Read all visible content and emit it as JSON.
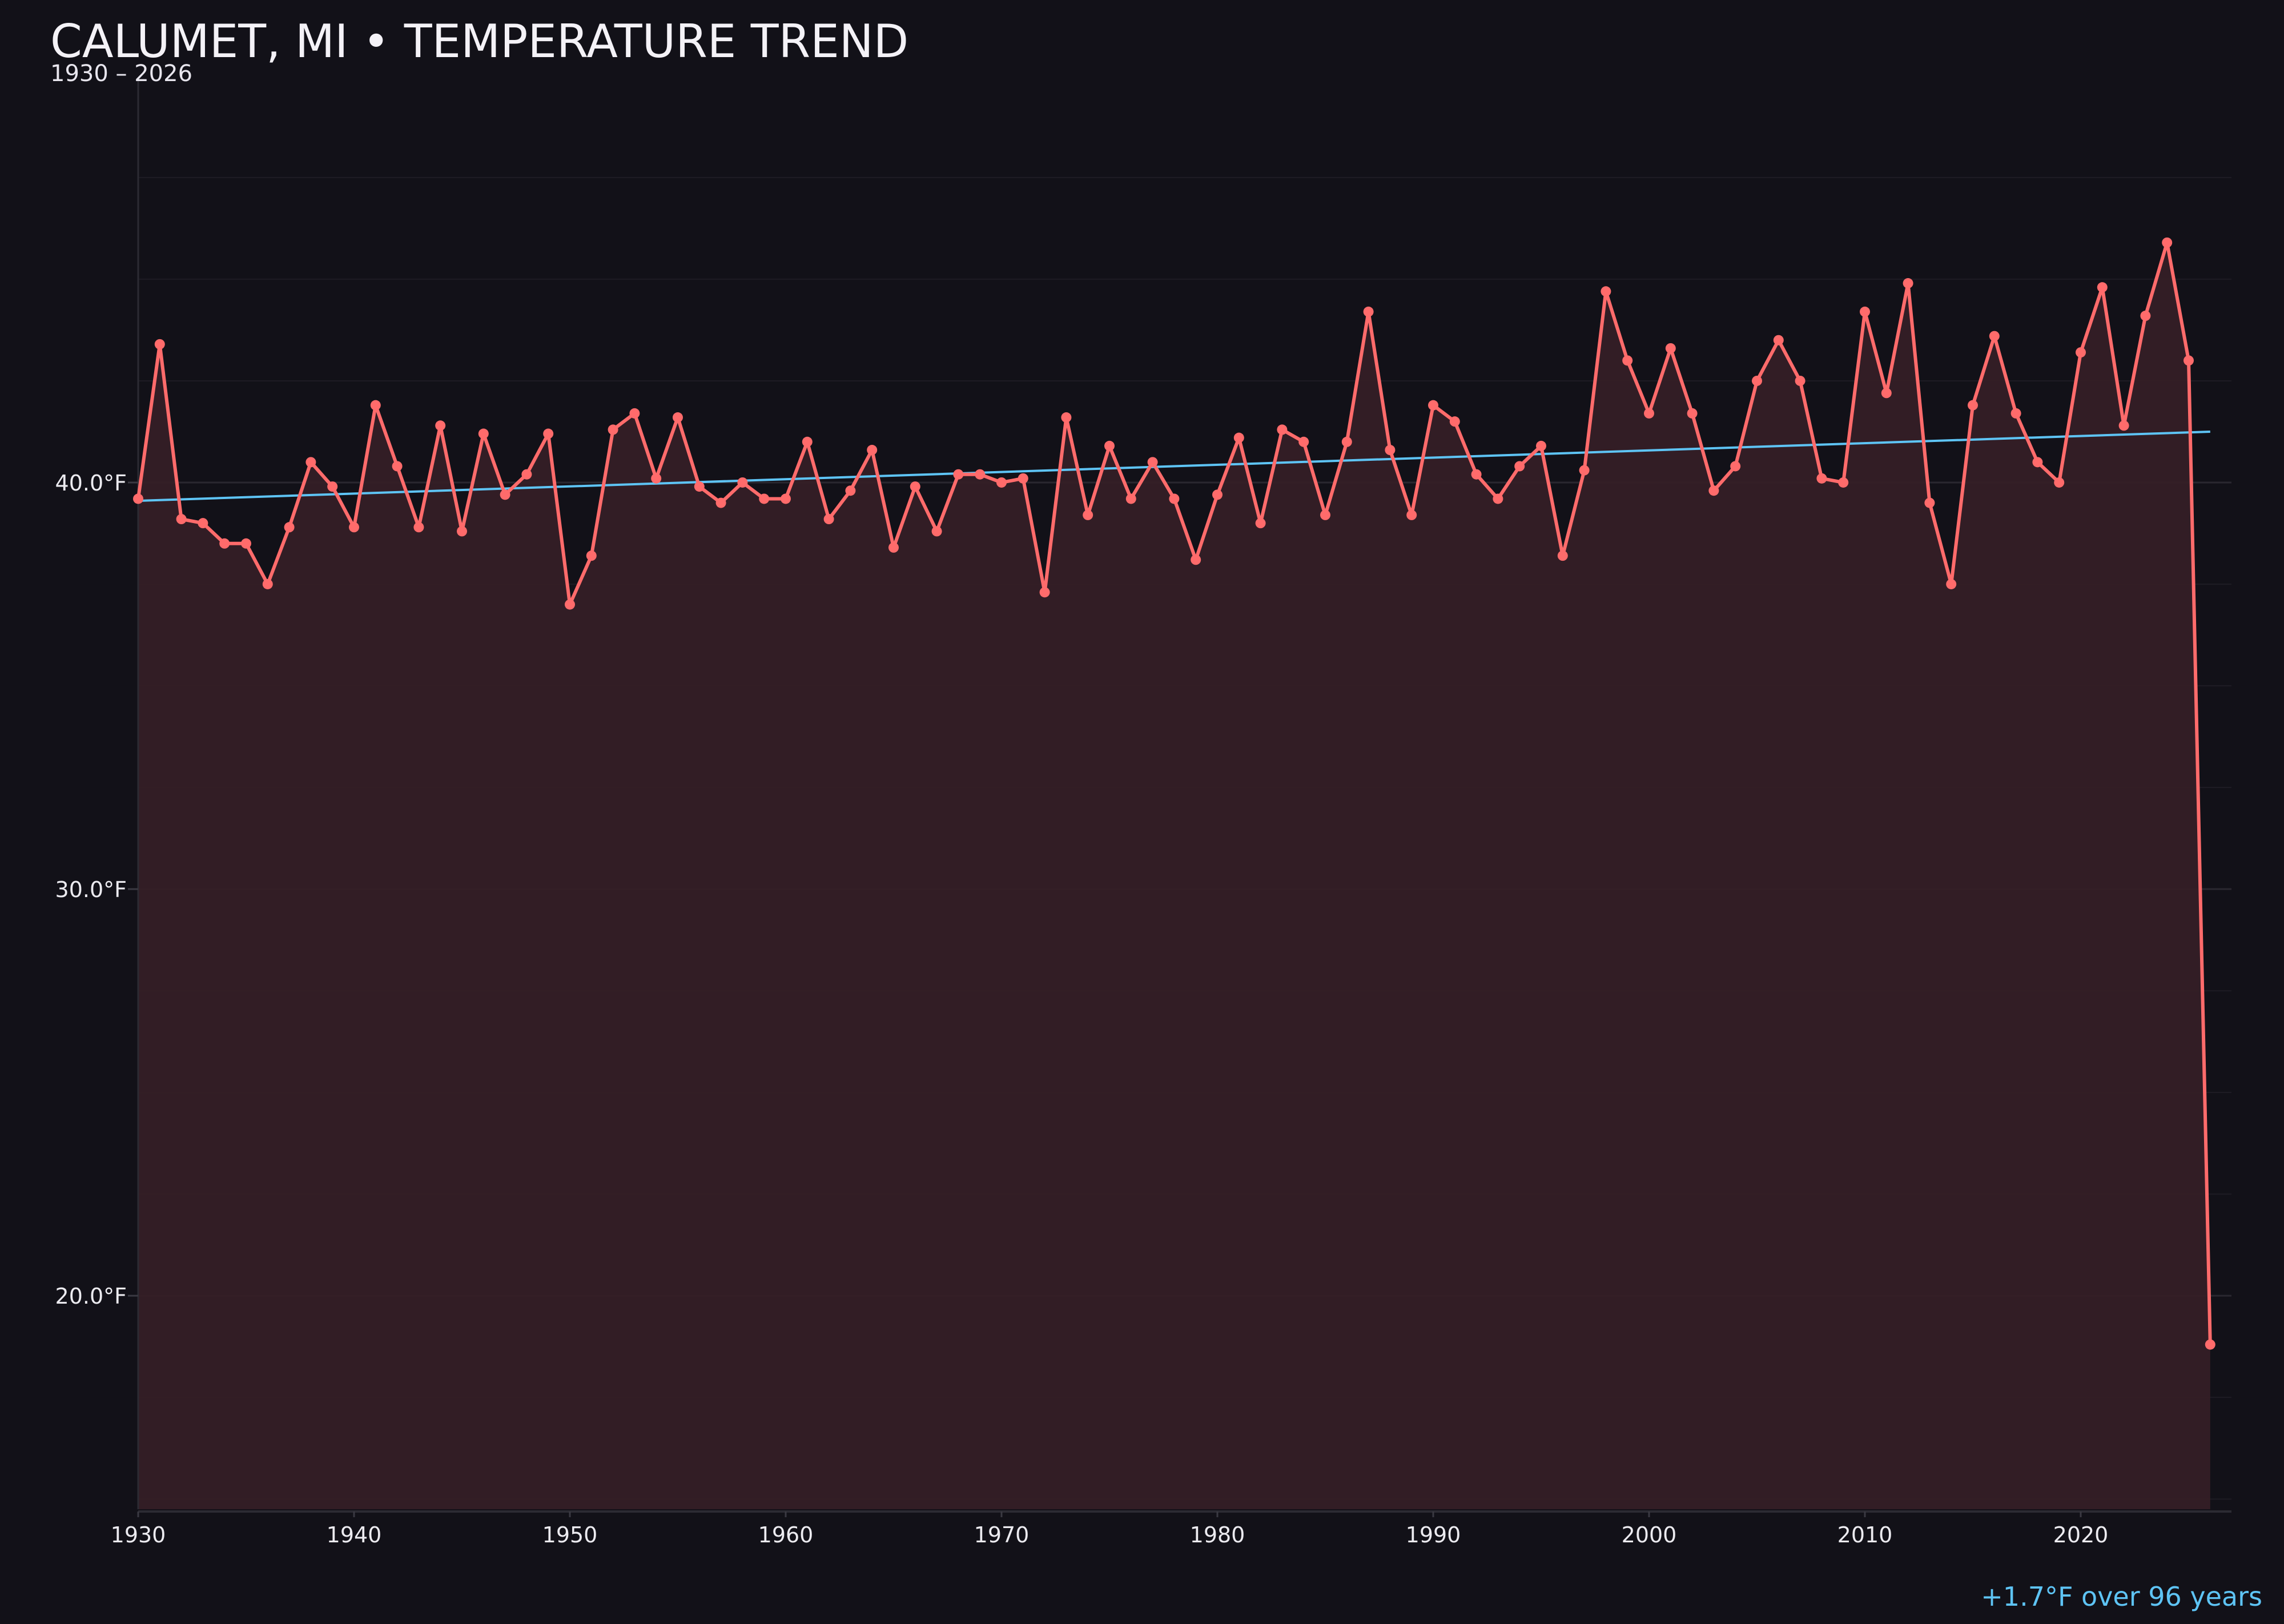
{
  "chart_data": {
    "type": "line",
    "title": "CALUMET, MI • TEMPERATURE TREND",
    "subtitle": "1930 – 2026",
    "annotation": "+1.7°F over 96 years",
    "xlabel": "",
    "ylabel": "",
    "xlim": [
      1930,
      2027
    ],
    "ylim": [
      14.75,
      49.9
    ],
    "x_ticks": [
      1930,
      1940,
      1950,
      1960,
      1970,
      1980,
      1990,
      2000,
      2010,
      2020
    ],
    "y_ticks": [
      {
        "value": 20,
        "label": "20.0°F"
      },
      {
        "value": 30,
        "label": "30.0°F"
      },
      {
        "value": 40,
        "label": "40.0°F"
      }
    ],
    "minor_grid_step": 2.5,
    "grid": true,
    "colors": {
      "background": "#121118",
      "series": "#ff6b6b",
      "fill": "#351f26",
      "trend": "#5ec4f5"
    },
    "x": [
      1930,
      1931,
      1932,
      1933,
      1934,
      1935,
      1936,
      1937,
      1938,
      1939,
      1940,
      1941,
      1942,
      1943,
      1944,
      1945,
      1946,
      1947,
      1948,
      1949,
      1950,
      1951,
      1952,
      1953,
      1954,
      1955,
      1956,
      1957,
      1958,
      1959,
      1960,
      1961,
      1962,
      1963,
      1964,
      1965,
      1966,
      1967,
      1968,
      1969,
      1970,
      1971,
      1972,
      1973,
      1974,
      1975,
      1976,
      1977,
      1978,
      1979,
      1980,
      1981,
      1982,
      1983,
      1984,
      1985,
      1986,
      1987,
      1988,
      1989,
      1990,
      1991,
      1992,
      1993,
      1994,
      1995,
      1996,
      1997,
      1998,
      1999,
      2000,
      2001,
      2002,
      2003,
      2004,
      2005,
      2006,
      2007,
      2008,
      2009,
      2010,
      2011,
      2012,
      2013,
      2014,
      2015,
      2016,
      2017,
      2018,
      2019,
      2020,
      2021,
      2022,
      2023,
      2024,
      2025,
      2026
    ],
    "values": [
      39.6,
      43.4,
      39.1,
      39.0,
      38.5,
      38.5,
      37.5,
      38.9,
      40.5,
      39.9,
      38.9,
      41.9,
      40.4,
      38.9,
      41.4,
      38.8,
      41.2,
      39.7,
      40.2,
      41.2,
      37.0,
      38.2,
      41.3,
      41.7,
      40.1,
      41.6,
      39.9,
      39.5,
      40.0,
      39.6,
      39.6,
      41.0,
      39.1,
      39.8,
      40.8,
      38.4,
      39.9,
      38.8,
      40.2,
      40.2,
      40.0,
      40.1,
      37.3,
      41.6,
      39.2,
      40.9,
      39.6,
      40.5,
      39.6,
      38.1,
      39.7,
      41.1,
      39.0,
      41.3,
      41.0,
      39.2,
      41.0,
      44.2,
      40.8,
      39.2,
      41.9,
      41.5,
      40.2,
      39.6,
      40.4,
      40.9,
      38.2,
      40.3,
      44.7,
      43.0,
      41.7,
      43.3,
      41.7,
      39.8,
      40.4,
      42.5,
      43.5,
      42.5,
      40.1,
      40.0,
      44.2,
      42.2,
      44.9,
      39.5,
      37.5,
      41.9,
      43.6,
      41.7,
      40.5,
      40.0,
      43.2,
      44.8,
      41.4,
      44.1,
      45.9,
      43.0,
      18.8
    ],
    "trend": {
      "start": {
        "x": 1930,
        "y": 39.55
      },
      "end": {
        "x": 2026,
        "y": 41.25
      }
    }
  }
}
